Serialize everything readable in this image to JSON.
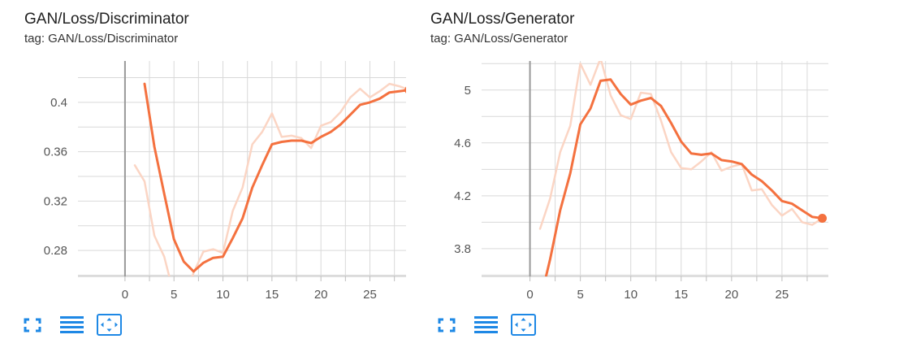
{
  "colors": {
    "smoothed": "#f4713f",
    "raw": "#fbd5c4",
    "grid": "#d9d9d9",
    "zero_axis": "#999999",
    "toolbar_icon": "#1e88e5"
  },
  "cards": [
    {
      "title": "GAN/Loss/Discriminator",
      "tag": "tag: GAN/Loss/Discriminator",
      "toolbar": [
        "fullscreen-icon",
        "toggle-log-scale-icon",
        "fit-domain-icon"
      ]
    },
    {
      "title": "GAN/Loss/Generator",
      "tag": "tag: GAN/Loss/Generator",
      "toolbar": [
        "fullscreen-icon",
        "toggle-log-scale-icon",
        "fit-domain-icon"
      ]
    }
  ],
  "chart_data": [
    {
      "type": "line",
      "title": "GAN/Loss/Discriminator",
      "xlabel": "",
      "ylabel": "",
      "xlim": [
        -4.8,
        29.6
      ],
      "ylim": [
        0.259,
        0.4335
      ],
      "x_ticks": [
        0,
        5,
        10,
        15,
        20,
        25
      ],
      "y_ticks": [
        0.28,
        0.32,
        0.36,
        0.4
      ],
      "y_tick_labels": [
        "0.28",
        "0.32",
        "0.36",
        "0.4"
      ],
      "x_minor_ticks": [
        -5,
        2.5,
        7.5,
        12.5,
        17.5,
        22.5,
        27.5
      ],
      "y_minor_ticks": [
        0.26,
        0.3,
        0.34,
        0.38,
        0.42
      ],
      "grid": true,
      "series": [
        {
          "role": "raw",
          "x": [
            1,
            2,
            3,
            4,
            5,
            6,
            7,
            8,
            9,
            10,
            11,
            12,
            13,
            14,
            15,
            16,
            17,
            18,
            19,
            20,
            21,
            22,
            23,
            24,
            25,
            26,
            27,
            28,
            29
          ],
          "y": [
            0.349,
            0.336,
            0.292,
            0.275,
            0.244,
            0.238,
            0.262,
            0.279,
            0.281,
            0.278,
            0.312,
            0.331,
            0.366,
            0.376,
            0.391,
            0.372,
            0.373,
            0.371,
            0.363,
            0.381,
            0.384,
            0.392,
            0.404,
            0.411,
            0.404,
            0.409,
            0.415,
            0.413,
            0.41
          ]
        },
        {
          "role": "smoothed",
          "x": [
            2,
            3,
            4,
            5,
            6,
            7,
            8,
            9,
            10,
            11,
            12,
            13,
            14,
            15,
            16,
            17,
            18,
            19,
            20,
            21,
            22,
            23,
            24,
            25,
            26,
            27,
            28,
            29
          ],
          "y": [
            0.415,
            0.364,
            0.326,
            0.289,
            0.271,
            0.263,
            0.27,
            0.274,
            0.275,
            0.29,
            0.306,
            0.331,
            0.349,
            0.366,
            0.368,
            0.369,
            0.369,
            0.367,
            0.372,
            0.376,
            0.382,
            0.39,
            0.398,
            0.4,
            0.403,
            0.408,
            0.409,
            0.41
          ]
        }
      ]
    },
    {
      "type": "line",
      "title": "GAN/Loss/Generator",
      "xlabel": "",
      "ylabel": "",
      "xlim": [
        -4.8,
        29.6
      ],
      "ylim": [
        3.59,
        5.22
      ],
      "x_ticks": [
        0,
        5,
        10,
        15,
        20,
        25
      ],
      "y_ticks": [
        3.8,
        4.2,
        4.6,
        5.0
      ],
      "y_tick_labels": [
        "3.8",
        "4.2",
        "4.6",
        "5"
      ],
      "x_minor_ticks": [
        -5,
        2.5,
        7.5,
        12.5,
        17.5,
        22.5,
        27.5
      ],
      "y_minor_ticks": [
        3.6,
        4.0,
        4.4,
        4.8,
        5.2
      ],
      "grid": true,
      "series": [
        {
          "role": "raw",
          "x": [
            1,
            2,
            3,
            4,
            5,
            6,
            7,
            8,
            9,
            10,
            11,
            12,
            13,
            14,
            15,
            16,
            17,
            18,
            19,
            20,
            21,
            22,
            23,
            24,
            25,
            26,
            27,
            28,
            29
          ],
          "y": [
            3.95,
            4.18,
            4.53,
            4.73,
            5.2,
            5.04,
            5.24,
            4.96,
            4.81,
            4.78,
            4.98,
            4.97,
            4.77,
            4.53,
            4.41,
            4.4,
            4.46,
            4.53,
            4.39,
            4.42,
            4.44,
            4.24,
            4.25,
            4.13,
            4.05,
            4.1,
            4.0,
            3.98,
            4.03
          ]
        },
        {
          "role": "smoothed",
          "x": [
            1,
            2,
            3,
            4,
            5,
            6,
            7,
            8,
            9,
            10,
            11,
            12,
            13,
            14,
            15,
            16,
            17,
            18,
            19,
            20,
            21,
            22,
            23,
            24,
            25,
            26,
            27,
            28,
            29
          ],
          "y": [
            3.4,
            3.72,
            4.09,
            4.37,
            4.74,
            4.86,
            5.07,
            5.08,
            4.97,
            4.89,
            4.92,
            4.94,
            4.88,
            4.75,
            4.61,
            4.52,
            4.51,
            4.52,
            4.47,
            4.46,
            4.44,
            4.36,
            4.31,
            4.24,
            4.16,
            4.14,
            4.09,
            4.04,
            4.03
          ]
        }
      ]
    }
  ]
}
